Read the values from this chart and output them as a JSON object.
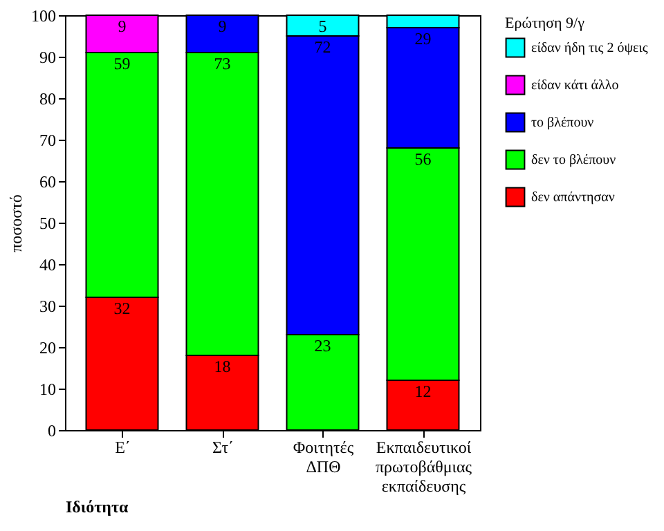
{
  "chart_data": {
    "type": "bar",
    "stacked": true,
    "xlabel": "Ιδιότητα",
    "ylabel": "ποσοστό",
    "legend_title": "Ερώτηση 9/γ",
    "legend": "right",
    "grid": false,
    "categories": [
      "Ε΄",
      "Στ΄",
      "Φοιτητές ΔΠΘ",
      "Εκπαιδευτικοί πρωτοβάθμιας εκπαίδευσης"
    ],
    "ylim": [
      0,
      100
    ],
    "yticks": [
      0,
      10,
      20,
      30,
      40,
      50,
      60,
      70,
      80,
      90,
      100
    ],
    "series": [
      {
        "name": "δεν απάντησαν",
        "color": "#ff0000",
        "values": [
          32,
          18,
          null,
          12
        ],
        "value_labels": [
          "32",
          "18",
          null,
          "12"
        ]
      },
      {
        "name": "δεν το βλέπουν",
        "color": "#00ff00",
        "values": [
          59,
          73,
          23,
          56
        ],
        "value_labels": [
          "59",
          "73",
          "23",
          "56"
        ]
      },
      {
        "name": "το βλέπουν",
        "color": "#0000ff",
        "values": [
          null,
          9,
          72,
          29
        ],
        "value_labels": [
          null,
          "9",
          "72",
          "29"
        ]
      },
      {
        "name": "είδαν κάτι άλλο",
        "color": "#ff00ff",
        "values": [
          9,
          null,
          null,
          null
        ],
        "value_labels": [
          "9",
          null,
          null,
          null
        ]
      },
      {
        "name": "είδαν ήδη τις 2 όψεις",
        "color": "#00ffff",
        "values": [
          null,
          null,
          5,
          3
        ],
        "value_labels": [
          null,
          null,
          "5",
          null
        ]
      }
    ]
  }
}
